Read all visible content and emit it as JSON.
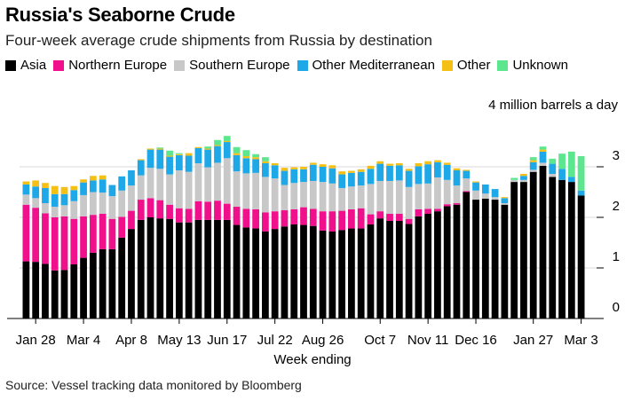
{
  "chart_data": {
    "type": "bar",
    "stacked": true,
    "title": "Russia's Seaborne Crude",
    "subtitle": "Four-week average crude shipments from Russia by destination",
    "unit_label": "4 million barrels a day",
    "xlabel": "Week ending",
    "ylabel": "",
    "ylim": [
      0,
      4
    ],
    "yticks": [
      0,
      1,
      2,
      3
    ],
    "source": "Source: Vessel tracking data monitored by Bloomberg",
    "legend_position": "top-left",
    "x_tick_labels": [
      "Jan 28",
      "Mar 4",
      "Apr 8",
      "May 13",
      "Jun 17",
      "Jul 22",
      "Aug 26",
      "Oct 7",
      "Nov 11",
      "Dec 16",
      "Jan 27",
      "Mar 3"
    ],
    "x_tick_indices": [
      1,
      6,
      11,
      16,
      21,
      26,
      31,
      37,
      42,
      47,
      53,
      58
    ],
    "series": [
      {
        "name": "Asia",
        "color": "#000000",
        "values": [
          1.13,
          1.12,
          1.08,
          0.95,
          0.96,
          1.07,
          1.2,
          1.3,
          1.37,
          1.37,
          1.6,
          1.77,
          1.95,
          2.0,
          1.98,
          1.97,
          1.9,
          1.9,
          1.95,
          1.95,
          1.95,
          1.95,
          1.85,
          1.8,
          1.78,
          1.72,
          1.77,
          1.82,
          1.86,
          1.85,
          1.83,
          1.74,
          1.72,
          1.75,
          1.78,
          1.78,
          1.86,
          1.98,
          1.93,
          1.93,
          1.87,
          2.02,
          2.07,
          2.12,
          2.22,
          2.25,
          2.5,
          2.35,
          2.37,
          2.35,
          2.25,
          2.7,
          2.7,
          2.9,
          3.02,
          2.8,
          2.74,
          2.7,
          2.43
        ]
      },
      {
        "name": "Northern Europe",
        "color": "#f0108c",
        "values": [
          1.12,
          1.07,
          1.0,
          1.05,
          1.06,
          0.9,
          0.82,
          0.75,
          0.7,
          0.6,
          0.41,
          0.36,
          0.4,
          0.38,
          0.36,
          0.28,
          0.28,
          0.27,
          0.37,
          0.36,
          0.38,
          0.32,
          0.36,
          0.37,
          0.38,
          0.38,
          0.35,
          0.32,
          0.3,
          0.35,
          0.34,
          0.38,
          0.4,
          0.38,
          0.38,
          0.4,
          0.2,
          0.14,
          0.14,
          0.14,
          0.1,
          0.14,
          0.1,
          0.05,
          0.04,
          0.03,
          0.02,
          0.0,
          0.0,
          0.0,
          0.0,
          0.0,
          0.0,
          0.0,
          0.0,
          0.0,
          0.0,
          0.0,
          0.0
        ]
      },
      {
        "name": "Southern Europe",
        "color": "#c8c8c8",
        "values": [
          0.2,
          0.19,
          0.2,
          0.21,
          0.22,
          0.35,
          0.42,
          0.45,
          0.42,
          0.45,
          0.52,
          0.5,
          0.48,
          0.6,
          0.62,
          0.6,
          0.75,
          0.73,
          0.75,
          0.68,
          0.75,
          0.9,
          0.7,
          0.7,
          0.72,
          0.7,
          0.65,
          0.5,
          0.52,
          0.5,
          0.55,
          0.58,
          0.55,
          0.45,
          0.45,
          0.45,
          0.6,
          0.6,
          0.65,
          0.66,
          0.63,
          0.5,
          0.5,
          0.62,
          0.48,
          0.35,
          0.25,
          0.18,
          0.1,
          0.05,
          0.03,
          0.04,
          0.04,
          0.04,
          0.06,
          0.06,
          0.0,
          0.0,
          0.0
        ]
      },
      {
        "name": "Other Mediterranean",
        "color": "#1ea8e8",
        "values": [
          0.2,
          0.23,
          0.3,
          0.25,
          0.22,
          0.22,
          0.25,
          0.23,
          0.26,
          0.22,
          0.28,
          0.3,
          0.3,
          0.36,
          0.38,
          0.35,
          0.3,
          0.32,
          0.3,
          0.35,
          0.33,
          0.32,
          0.32,
          0.3,
          0.27,
          0.27,
          0.26,
          0.28,
          0.27,
          0.25,
          0.32,
          0.3,
          0.3,
          0.27,
          0.27,
          0.27,
          0.3,
          0.34,
          0.3,
          0.3,
          0.32,
          0.35,
          0.38,
          0.3,
          0.3,
          0.3,
          0.15,
          0.16,
          0.18,
          0.16,
          0.1,
          0.0,
          0.08,
          0.15,
          0.22,
          0.2,
          0.22,
          0.1,
          0.1
        ]
      },
      {
        "name": "Other",
        "color": "#f5c015",
        "values": [
          0.06,
          0.12,
          0.1,
          0.16,
          0.14,
          0.08,
          0.06,
          0.09,
          0.08,
          0.0,
          0.0,
          0.0,
          0.02,
          0.02,
          0.02,
          0.02,
          0.02,
          0.05,
          0.02,
          0.02,
          0.02,
          0.02,
          0.04,
          0.04,
          0.04,
          0.04,
          0.04,
          0.06,
          0.04,
          0.05,
          0.04,
          0.05,
          0.06,
          0.06,
          0.04,
          0.05,
          0.06,
          0.05,
          0.04,
          0.04,
          0.04,
          0.06,
          0.06,
          0.04,
          0.04,
          0.04,
          0.02,
          0.02,
          0.0,
          0.0,
          0.02,
          0.0,
          0.04,
          0.04,
          0.04,
          0.0,
          0.0,
          0.0,
          0.0
        ]
      },
      {
        "name": "Unknown",
        "color": "#5ce68e",
        "values": [
          0.0,
          0.0,
          0.0,
          0.0,
          0.0,
          0.0,
          0.0,
          0.0,
          0.0,
          0.0,
          0.0,
          0.0,
          0.0,
          0.0,
          0.02,
          0.1,
          0.02,
          0.0,
          0.0,
          0.04,
          0.1,
          0.1,
          0.12,
          0.12,
          0.06,
          0.08,
          0.0,
          0.0,
          0.0,
          0.0,
          0.0,
          0.0,
          0.0,
          0.0,
          0.0,
          0.0,
          0.0,
          0.0,
          0.0,
          0.0,
          0.0,
          0.0,
          0.0,
          0.0,
          0.0,
          0.0,
          0.0,
          0.0,
          0.0,
          0.0,
          0.0,
          0.04,
          0.0,
          0.06,
          0.06,
          0.1,
          0.3,
          0.5,
          0.68
        ]
      }
    ]
  }
}
